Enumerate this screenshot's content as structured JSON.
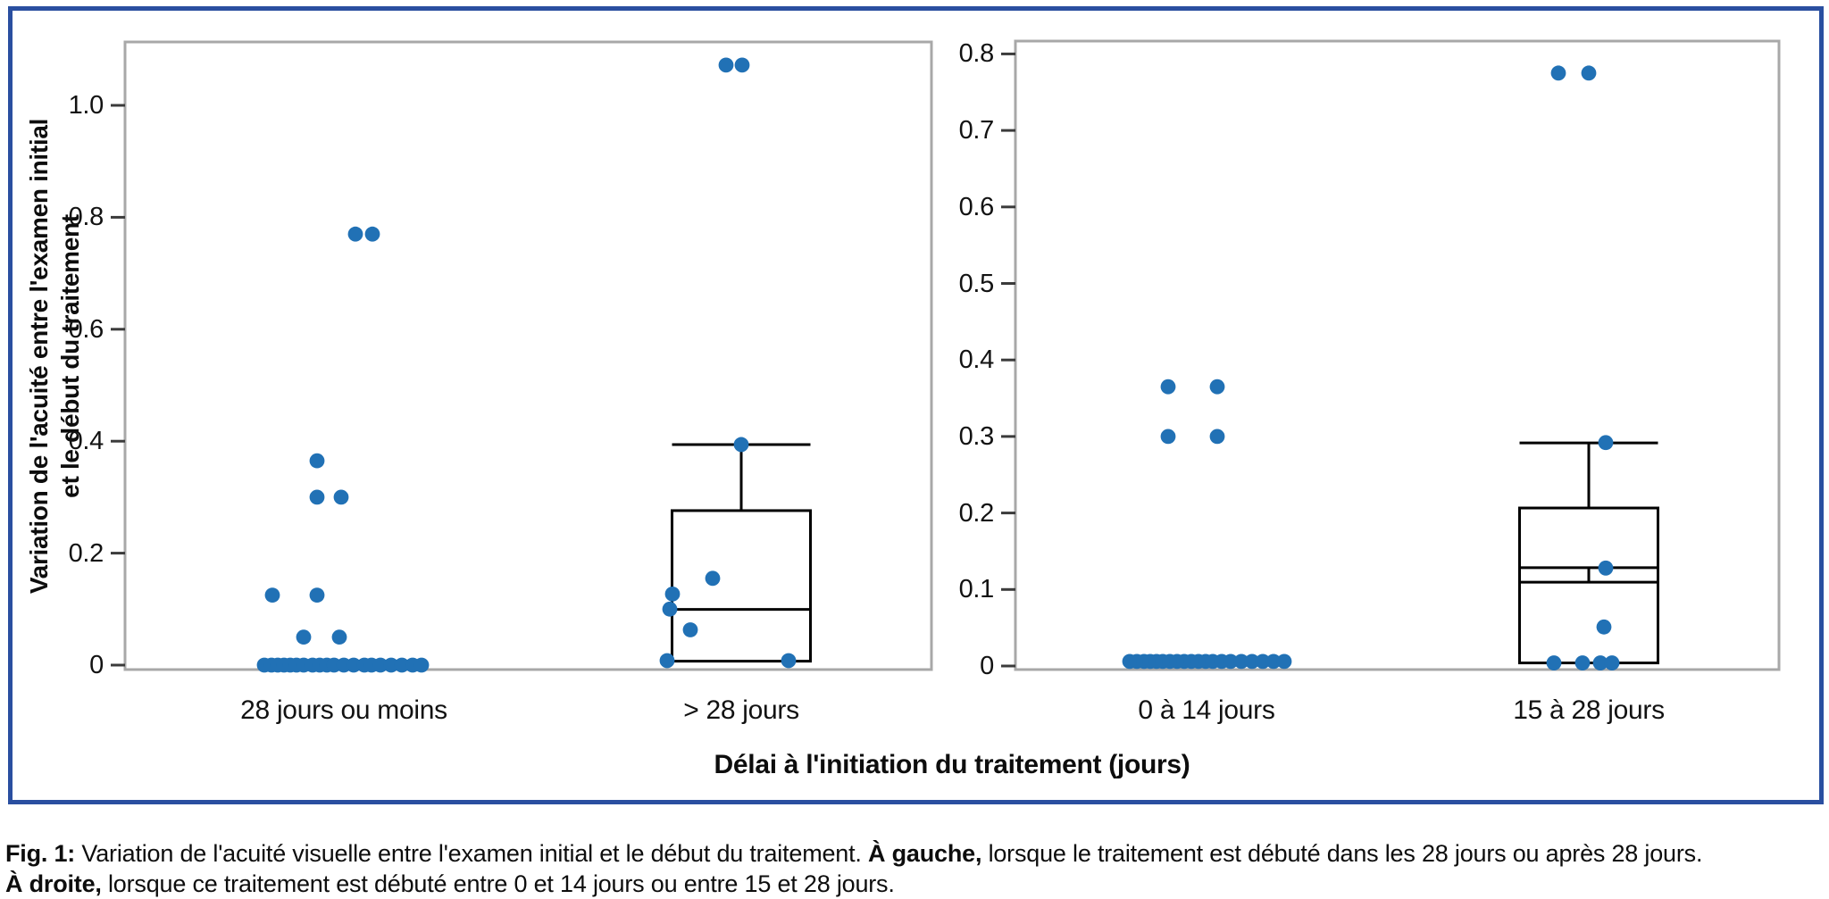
{
  "style": {
    "point_color": "#2171b5",
    "panel_border": "#a8a8a8",
    "tick_color": "#3b3b3b",
    "box_line": "#000000",
    "figure_border": "#2a4fa0"
  },
  "axes": {
    "x_title": "Délai à l'initiation du traitement (jours)",
    "y_title_line1": "Variation de l'acuité entre l'examen initial",
    "y_title_line2": "et le début du traitement"
  },
  "caption": {
    "segments": [
      {
        "text": "Fig. 1:",
        "bold": true
      },
      {
        "text": " Variation de l'acuité visuelle entre l'examen initial et le début du traitement. ",
        "bold": false
      },
      {
        "text": "À gauche,",
        "bold": true
      },
      {
        "text": " lorsque le traitement est débuté dans les 28 jours ou après 28 jours.",
        "bold": false,
        "break_after": true
      },
      {
        "text": "À droite,",
        "bold": true
      },
      {
        "text": " lorsque ce traitement est débuté entre 0 et 14 jours ou entre 15 et 28 jours.",
        "bold": false
      }
    ]
  },
  "chart_data": [
    {
      "panel": "left",
      "type": "scatter",
      "box_overlay": true,
      "grid": false,
      "legend": null,
      "ylabel": "Variation de l'acuité entre l'examen initial et le début du traitement",
      "xlabel_shared": "Délai à l'initiation du traitement (jours)",
      "ylim": [
        -0.035,
        1.115
      ],
      "categories": [
        "28 jours ou moins",
        "> 28 jours"
      ],
      "yticks": [
        "0",
        "0.2",
        "0.4",
        "0.6",
        "0.8",
        "1.0"
      ],
      "ytick_values": [
        0,
        0.2,
        0.4,
        0.6,
        0.8,
        1.0
      ],
      "groups": [
        {
          "category": "28 jours ou moins",
          "points": [
            {
              "v": 0,
              "dx": -89
            },
            {
              "v": 0,
              "dx": -81
            },
            {
              "v": 0,
              "dx": -74
            },
            {
              "v": 0,
              "dx": -67
            },
            {
              "v": 0,
              "dx": -60
            },
            {
              "v": 0,
              "dx": -53
            },
            {
              "v": 0,
              "dx": -45
            },
            {
              "v": 0,
              "dx": -35
            },
            {
              "v": 0,
              "dx": -27
            },
            {
              "v": 0,
              "dx": -19
            },
            {
              "v": 0,
              "dx": -11
            },
            {
              "v": 0,
              "dx": 0
            },
            {
              "v": 0,
              "dx": 11
            },
            {
              "v": 0,
              "dx": 23
            },
            {
              "v": 0,
              "dx": 31
            },
            {
              "v": 0,
              "dx": 41
            },
            {
              "v": 0,
              "dx": 53
            },
            {
              "v": 0,
              "dx": 65
            },
            {
              "v": 0,
              "dx": 77
            },
            {
              "v": 0,
              "dx": 87
            },
            {
              "v": 0.05,
              "dx": -45
            },
            {
              "v": 0.05,
              "dx": -5
            },
            {
              "v": 0.125,
              "dx": -80
            },
            {
              "v": 0.125,
              "dx": -30
            },
            {
              "v": 0.3,
              "dx": -30
            },
            {
              "v": 0.3,
              "dx": -3
            },
            {
              "v": 0.365,
              "dx": -30
            },
            {
              "v": 0.77,
              "dx": 13
            },
            {
              "v": 0.77,
              "dx": 32
            }
          ],
          "zero_line": {
            "v": 0,
            "dx1": -92,
            "dx2": 90
          }
        },
        {
          "category": "> 28 jours",
          "points": [
            {
              "v": 1.072,
              "dx": -17
            },
            {
              "v": 1.072,
              "dx": 1
            },
            {
              "v": 0.394,
              "dx": 0
            },
            {
              "v": 0.155,
              "dx": -32
            },
            {
              "v": 0.127,
              "dx": -77
            },
            {
              "v": 0.1,
              "dx": -80
            },
            {
              "v": 0.063,
              "dx": -57
            },
            {
              "v": 0.008,
              "dx": -83
            },
            {
              "v": 0.008,
              "dx": 53
            }
          ],
          "box": {
            "q1": 0.007,
            "median": 0.0995,
            "q3": 0.276,
            "whisker_high": 0.394,
            "width": 155
          }
        }
      ]
    },
    {
      "panel": "right",
      "type": "scatter",
      "box_overlay": true,
      "grid": false,
      "legend": null,
      "ylim": [
        -0.02,
        0.82
      ],
      "categories": [
        "0 à 14 jours",
        "15 à 28 jours"
      ],
      "yticks": [
        "0",
        "0.1",
        "0.2",
        "0.3",
        "0.4",
        "0.5",
        "0.6",
        "0.7",
        "0.8"
      ],
      "ytick_values": [
        0,
        0.1,
        0.2,
        0.3,
        0.4,
        0.5,
        0.6,
        0.7,
        0.8
      ],
      "groups": [
        {
          "category": "0 à 14 jours",
          "points": [
            {
              "v": 0.006,
              "dx": -86
            },
            {
              "v": 0.006,
              "dx": -78
            },
            {
              "v": 0.006,
              "dx": -70
            },
            {
              "v": 0.006,
              "dx": -63
            },
            {
              "v": 0.006,
              "dx": -56
            },
            {
              "v": 0.006,
              "dx": -49
            },
            {
              "v": 0.006,
              "dx": -41
            },
            {
              "v": 0.006,
              "dx": -33
            },
            {
              "v": 0.006,
              "dx": -25
            },
            {
              "v": 0.006,
              "dx": -17
            },
            {
              "v": 0.006,
              "dx": -9
            },
            {
              "v": 0.006,
              "dx": -1
            },
            {
              "v": 0.006,
              "dx": 7
            },
            {
              "v": 0.006,
              "dx": 17
            },
            {
              "v": 0.006,
              "dx": 27
            },
            {
              "v": 0.006,
              "dx": 39
            },
            {
              "v": 0.006,
              "dx": 51
            },
            {
              "v": 0.006,
              "dx": 63
            },
            {
              "v": 0.006,
              "dx": 75
            },
            {
              "v": 0.006,
              "dx": 87
            },
            {
              "v": 0.3,
              "dx": -43
            },
            {
              "v": 0.3,
              "dx": 12
            },
            {
              "v": 0.365,
              "dx": -43
            },
            {
              "v": 0.365,
              "dx": 12
            }
          ],
          "zero_line": {
            "v": 0.006,
            "dx1": -90,
            "dx2": 91
          }
        },
        {
          "category": "15 à 28 jours",
          "points": [
            {
              "v": 0.775,
              "dx": -34
            },
            {
              "v": 0.775,
              "dx": 0
            },
            {
              "v": 0.292,
              "dx": 19
            },
            {
              "v": 0.128,
              "dx": 19
            },
            {
              "v": 0.051,
              "dx": 17
            },
            {
              "v": 0.004,
              "dx": -39
            },
            {
              "v": 0.004,
              "dx": -7
            },
            {
              "v": 0.004,
              "dx": 13
            },
            {
              "v": 0.004,
              "dx": 26
            }
          ],
          "box": {
            "q1": 0.004,
            "median": 0.1095,
            "upper_line": 0.1285,
            "q3": 0.2065,
            "whisker_high": 0.2915,
            "width": 155
          }
        }
      ]
    }
  ]
}
